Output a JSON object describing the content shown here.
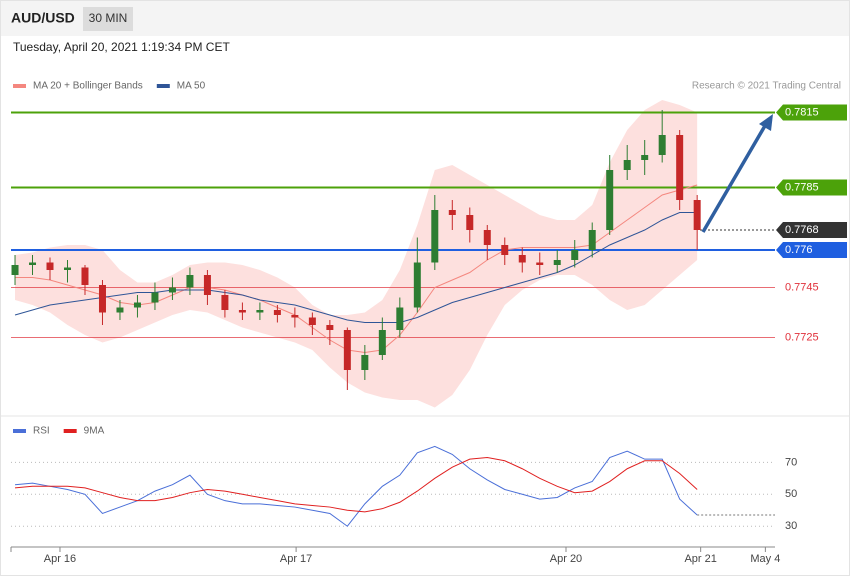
{
  "header": {
    "symbol": "AUD/USD",
    "timeframe": "30 MIN",
    "datetime": "Tuesday, April 20, 2021 1:19:34 PM CET",
    "credit": "Research © 2021 Trading Central"
  },
  "chart_data": [
    {
      "type": "candlestick",
      "xlim": [
        -0.23,
        43.45
      ],
      "xticks": [
        {
          "value": 2.57,
          "label": "Apr 16"
        },
        {
          "value": 16.07,
          "label": "Apr 17"
        },
        {
          "value": 31.5,
          "label": "Apr 20"
        },
        {
          "value": 39.2,
          "label": "Apr 21"
        },
        {
          "value": 42.9,
          "label": "May 4"
        }
      ],
      "ylim": [
        0.7694,
        0.7822
      ],
      "up_color": "#2e7d32",
      "down_color": "#c62828",
      "open": [
        0.775,
        0.7754,
        0.7755,
        0.7752,
        0.7753,
        0.7746,
        0.7735,
        0.7737,
        0.7739,
        0.7743,
        0.7745,
        0.775,
        0.7742,
        0.7736,
        0.7735,
        0.7736,
        0.7734,
        0.7733,
        0.773,
        0.7728,
        0.7712,
        0.7718,
        0.7728,
        0.7737,
        0.7755,
        0.7776,
        0.7774,
        0.7768,
        0.7762,
        0.7758,
        0.7755,
        0.7754,
        0.7756,
        0.776,
        0.7768,
        0.7792,
        0.7796,
        0.7798,
        0.7806,
        0.778
      ],
      "high": [
        0.7758,
        0.7758,
        0.7757,
        0.7756,
        0.7754,
        0.7748,
        0.774,
        0.7742,
        0.7747,
        0.7749,
        0.7753,
        0.7752,
        0.7744,
        0.7739,
        0.7739,
        0.7738,
        0.7737,
        0.7735,
        0.7732,
        0.7729,
        0.7722,
        0.7733,
        0.7741,
        0.7765,
        0.7782,
        0.778,
        0.7777,
        0.777,
        0.7765,
        0.7761,
        0.7759,
        0.776,
        0.7764,
        0.7771,
        0.7798,
        0.7802,
        0.7804,
        0.7816,
        0.7808,
        0.7782
      ],
      "low": [
        0.7746,
        0.775,
        0.7748,
        0.7747,
        0.7742,
        0.773,
        0.7732,
        0.7733,
        0.7736,
        0.774,
        0.7742,
        0.7738,
        0.7733,
        0.7732,
        0.7732,
        0.7731,
        0.7729,
        0.7726,
        0.7722,
        0.7704,
        0.7708,
        0.7716,
        0.7725,
        0.7735,
        0.7752,
        0.7768,
        0.7763,
        0.7756,
        0.7754,
        0.7751,
        0.775,
        0.7751,
        0.7753,
        0.7757,
        0.7766,
        0.7788,
        0.779,
        0.7795,
        0.7776,
        0.776
      ],
      "close": [
        0.7754,
        0.7755,
        0.7752,
        0.7753,
        0.7746,
        0.7735,
        0.7737,
        0.7739,
        0.7743,
        0.7745,
        0.775,
        0.7742,
        0.7736,
        0.7735,
        0.7736,
        0.7734,
        0.7733,
        0.773,
        0.7728,
        0.7712,
        0.7718,
        0.7728,
        0.7737,
        0.7755,
        0.7776,
        0.7774,
        0.7768,
        0.7762,
        0.7758,
        0.7755,
        0.7754,
        0.7756,
        0.776,
        0.7768,
        0.7792,
        0.7796,
        0.7798,
        0.7806,
        0.778,
        0.7768
      ],
      "series": [
        {
          "name": "MA 20 + Bollinger Bands",
          "color": "#f4877f",
          "band_color": "#fde0de",
          "values": [
            0.7749,
            0.7749,
            0.7748,
            0.7746,
            0.7744,
            0.7742,
            0.7739,
            0.7738,
            0.7739,
            0.7742,
            0.7745,
            0.7745,
            0.7744,
            0.7742,
            0.774,
            0.7737,
            0.7734,
            0.7729,
            0.7724,
            0.772,
            0.7719,
            0.772,
            0.7726,
            0.7735,
            0.7745,
            0.7748,
            0.7751,
            0.7756,
            0.776,
            0.7761,
            0.7761,
            0.7761,
            0.7761,
            0.7762,
            0.7767,
            0.7772,
            0.7777,
            0.7782,
            0.7784,
            0.7786
          ],
          "upper": [
            0.7758,
            0.7759,
            0.7761,
            0.7762,
            0.7762,
            0.776,
            0.7752,
            0.7747,
            0.7747,
            0.775,
            0.7754,
            0.7755,
            0.7755,
            0.7754,
            0.7752,
            0.7749,
            0.7745,
            0.7738,
            0.7734,
            0.7734,
            0.7735,
            0.774,
            0.7752,
            0.777,
            0.7792,
            0.7794,
            0.779,
            0.7786,
            0.7782,
            0.7778,
            0.7774,
            0.7772,
            0.7772,
            0.7778,
            0.7795,
            0.7808,
            0.7816,
            0.782,
            0.7818,
            0.7815
          ],
          "lower": [
            0.774,
            0.7738,
            0.7735,
            0.773,
            0.7726,
            0.7723,
            0.7725,
            0.7728,
            0.7731,
            0.7734,
            0.7736,
            0.7735,
            0.7732,
            0.7729,
            0.7727,
            0.7725,
            0.7723,
            0.772,
            0.7713,
            0.7707,
            0.7703,
            0.7701,
            0.77,
            0.77,
            0.7697,
            0.7702,
            0.7712,
            0.7726,
            0.7738,
            0.7744,
            0.7748,
            0.775,
            0.775,
            0.7746,
            0.774,
            0.7736,
            0.7738,
            0.7744,
            0.775,
            0.7756
          ]
        },
        {
          "name": "MA 50",
          "color": "#2f5597",
          "values": [
            0.7734,
            0.7736,
            0.7738,
            0.7739,
            0.774,
            0.7741,
            0.7742,
            0.7743,
            0.7743,
            0.7744,
            0.7744,
            0.7744,
            0.7743,
            0.7742,
            0.774,
            0.7739,
            0.7738,
            0.7736,
            0.7734,
            0.7732,
            0.7731,
            0.7731,
            0.7731,
            0.7733,
            0.7736,
            0.7739,
            0.7741,
            0.7743,
            0.7745,
            0.7747,
            0.7749,
            0.7751,
            0.7754,
            0.7758,
            0.7762,
            0.7765,
            0.7768,
            0.7772,
            0.7775,
            0.7775
          ]
        }
      ],
      "levels": [
        {
          "value": 0.7815,
          "color": "#4ca20a",
          "badge": true,
          "line": true
        },
        {
          "value": 0.7785,
          "color": "#4ca20a",
          "badge": true,
          "line": true
        },
        {
          "value": 0.7768,
          "color": "#333333",
          "badge": true,
          "line": false
        },
        {
          "value": 0.776,
          "color": "#1f5fe0",
          "badge": true,
          "line": true
        },
        {
          "value": 0.7745,
          "color": "#e0303a",
          "badge": false,
          "line": true
        },
        {
          "value": 0.7725,
          "color": "#e0303a",
          "badge": false,
          "line": true
        }
      ]
    },
    {
      "type": "line",
      "ylim": [
        22,
        84
      ],
      "yticks": [
        30,
        50,
        70
      ],
      "grid": true,
      "series": [
        {
          "name": "RSI",
          "color": "#4a6fd8",
          "values": [
            56,
            57,
            55,
            53,
            50,
            38,
            42,
            46,
            52,
            56,
            62,
            50,
            46,
            44,
            44,
            43,
            42,
            40,
            38,
            30,
            44,
            55,
            62,
            76,
            80,
            75,
            66,
            59,
            53,
            50,
            47,
            48,
            54,
            58,
            73,
            77,
            72,
            72,
            47,
            37
          ]
        },
        {
          "name": "9MA",
          "color": "#e02020",
          "values": [
            54,
            55,
            55,
            55,
            54,
            51,
            48,
            46,
            46,
            48,
            51,
            53,
            52,
            50,
            48,
            46,
            44,
            43,
            42,
            40,
            39,
            41,
            45,
            52,
            60,
            67,
            72,
            73,
            71,
            66,
            60,
            55,
            51,
            52,
            58,
            66,
            71,
            71,
            63,
            53
          ]
        }
      ]
    }
  ]
}
